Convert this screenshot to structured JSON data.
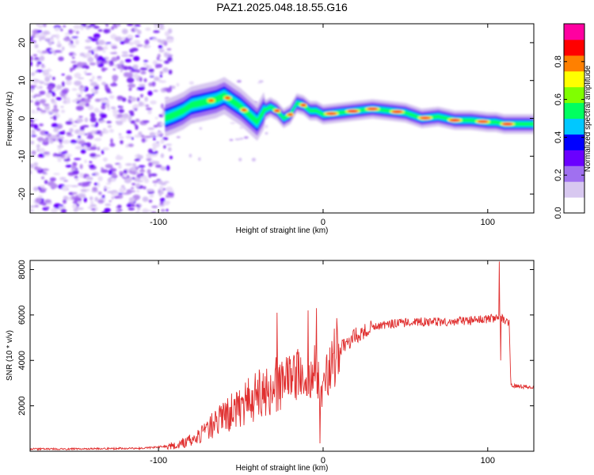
{
  "title": "PAZ1.2025.048.18.55.G16",
  "chart_data": [
    {
      "type": "heatmap",
      "xlabel": "Height of straight line (km)",
      "ylabel": "Frequency (Hz)",
      "xlim": [
        -178,
        128
      ],
      "ylim": [
        -25,
        25
      ],
      "xticks": [
        -100,
        0,
        100
      ],
      "yticks": [
        -20,
        -10,
        0,
        10,
        20
      ],
      "ridge": {
        "x": [
          -96,
          -90,
          -85,
          -80,
          -75,
          -70,
          -65,
          -60,
          -55,
          -50,
          -45,
          -40,
          -36,
          -32,
          -28,
          -24,
          -20,
          -16,
          -12,
          -8,
          -4,
          0,
          10,
          20,
          30,
          40,
          50,
          60,
          70,
          80,
          90,
          100,
          105,
          110,
          115,
          128
        ],
        "y": [
          0,
          1,
          2,
          3.5,
          4,
          4.5,
          5,
          6,
          4.5,
          3,
          1,
          -1,
          2,
          3,
          2,
          0,
          1,
          4,
          3.5,
          2,
          2,
          1,
          1.5,
          2,
          2.5,
          2,
          1.5,
          0,
          0.5,
          -0.5,
          -0.5,
          -1,
          -1,
          -1.5,
          -1.5,
          -1.5
        ]
      },
      "colorbar": {
        "label": "Normalized spectral amplitude",
        "range": [
          0,
          1
        ],
        "ticks": [
          0.0,
          0.2,
          0.4,
          0.6,
          0.8
        ],
        "colors": [
          "#ffffff",
          "#d8c8f0",
          "#a070f0",
          "#6a00ff",
          "#0000ff",
          "#00c8ff",
          "#00ff60",
          "#80ff00",
          "#ffff00",
          "#ff8000",
          "#ff0000",
          "#ff00a0"
        ]
      }
    },
    {
      "type": "line",
      "xlabel": "Height of straight line (km)",
      "ylabel": "SNR (10 * v/v)",
      "xlim": [
        -178,
        128
      ],
      "ylim": [
        0,
        8400
      ],
      "xticks": [
        -100,
        0,
        100
      ],
      "yticks": [
        2000,
        4000,
        6000,
        8000
      ],
      "color": "#e03030",
      "envelope": {
        "x": [
          -178,
          -150,
          -110,
          -90,
          -80,
          -70,
          -60,
          -50,
          -40,
          -30,
          -20,
          -10,
          -5,
          0,
          5,
          10,
          20,
          30,
          40,
          60,
          80,
          100,
          106,
          110,
          113,
          114,
          128
        ],
        "y": [
          100,
          100,
          130,
          250,
          500,
          1000,
          1500,
          2000,
          2400,
          2800,
          3200,
          3700,
          3500,
          2500,
          4200,
          4500,
          5100,
          5450,
          5600,
          5700,
          5700,
          5800,
          5900,
          5800,
          5600,
          2900,
          2800
        ]
      },
      "spikes": [
        {
          "x": -28,
          "y": 6100
        },
        {
          "x": -9,
          "y": 6200
        },
        {
          "x": -4,
          "y": 6300
        },
        {
          "x": -2,
          "y": 350
        },
        {
          "x": 107,
          "y": 8350
        },
        {
          "x": 108,
          "y": 4000
        }
      ]
    }
  ]
}
